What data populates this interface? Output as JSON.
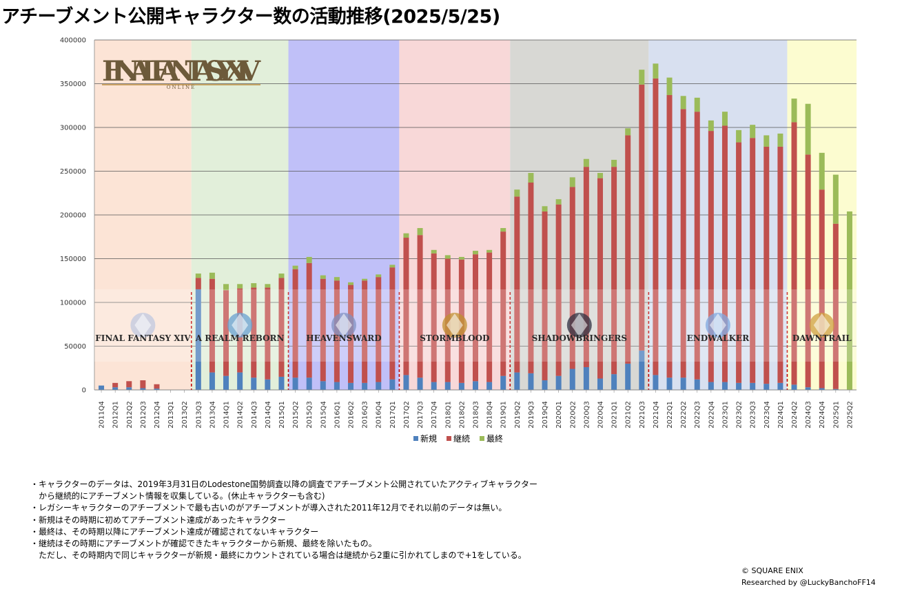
{
  "page": {
    "title": "アチーブメント公開キャラクター数の活動推移(2025/5/25)",
    "notes": [
      "・キャラクターのデータは、2019年3月31日のLodestone国勢調査以降の調査でアチーブメント公開されていたアクティブキャラクター",
      "　から継続的にアチーブメント情報を収集している。(休止キャラクターも含む)",
      "・レガシーキャラクターのアチーブメントで最も古いのがアチーブメントが導入された2011年12月でそれ以前のデータは無い。",
      "・新規はその時期に初めてアチーブメント達成があったキャラクター",
      "・最終は、その時期以降にアチーブメント達成が確認されてないキャラクター",
      "・継続はその時期にアチーブメントが確認できたキャラクターから新規、最終を除いたもの。",
      "　ただし、その時期内で同じキャラクターが新規・最終にカウントされている場合は継続から2重に引かれてしまので+1をしている。"
    ],
    "copyright": "© SQUARE ENIX",
    "researched_by": "Researched by @LuckyBanchoFF14"
  },
  "logos": {
    "main": {
      "title": "FINAL FANTASY XIV",
      "subtitle": "ONLINE"
    },
    "expansions": [
      {
        "label": "FINAL FANTASY XIV",
        "icon": "crystal-emblem-icon"
      },
      {
        "label": "A REALM REBORN",
        "icon": "dragon-emblem-icon"
      },
      {
        "label": "HEAVENSWARD",
        "icon": "dragon-knight-emblem-icon"
      },
      {
        "label": "STORMBLOOD",
        "icon": "flame-emblem-icon"
      },
      {
        "label": "SHADOWBRINGERS",
        "icon": "dark-warrior-emblem-icon"
      },
      {
        "label": "ENDWALKER",
        "icon": "moon-orb-emblem-icon"
      },
      {
        "label": "DAWNTRAIL",
        "icon": "golden-ring-emblem-icon"
      }
    ]
  },
  "chart_data": {
    "type": "bar",
    "stacked": true,
    "categories": [
      "2011Q4",
      "2012Q1",
      "2012Q2",
      "2012Q3",
      "2012Q4",
      "2013Q1",
      "2013Q2",
      "2013Q3",
      "2013Q4",
      "2014Q1",
      "2014Q2",
      "2014Q3",
      "2014Q4",
      "2015Q1",
      "2015Q2",
      "2015Q3",
      "2015Q4",
      "2016Q1",
      "2016Q2",
      "2016Q3",
      "2016Q4",
      "2017Q1",
      "2017Q2",
      "2017Q3",
      "2017Q4",
      "2018Q1",
      "2018Q2",
      "2018Q3",
      "2018Q4",
      "2019Q1",
      "2019Q2",
      "2019Q3",
      "2019Q4",
      "2020Q1",
      "2020Q2",
      "2020Q3",
      "2020Q4",
      "2021Q1",
      "2021Q2",
      "2021Q3",
      "2021Q4",
      "2022Q1",
      "2022Q2",
      "2022Q3",
      "2022Q4",
      "2023Q1",
      "2023Q2",
      "2023Q3",
      "2023Q4",
      "2024Q1",
      "2024Q2",
      "2024Q3",
      "2024Q4",
      "2025Q1",
      "2025Q2"
    ],
    "series": [
      {
        "name": "新規",
        "color": "#4f81bd",
        "values": [
          5000,
          3000,
          3000,
          2000,
          1500,
          0,
          0,
          115000,
          20000,
          16000,
          20000,
          14000,
          12000,
          15000,
          14000,
          14000,
          10000,
          9000,
          8000,
          8000,
          9000,
          12000,
          17000,
          14000,
          9000,
          9000,
          8000,
          10000,
          9000,
          16000,
          20000,
          19000,
          11000,
          16000,
          24000,
          26000,
          13000,
          18000,
          30000,
          45000,
          17000,
          14000,
          14000,
          12000,
          9000,
          9000,
          8000,
          8000,
          7000,
          8000,
          6000,
          3000,
          2000,
          1000,
          0
        ]
      },
      {
        "name": "継続",
        "color": "#c0504d",
        "values": [
          0,
          5000,
          7000,
          9000,
          5000,
          0,
          0,
          13000,
          107000,
          98000,
          96000,
          103000,
          105000,
          113000,
          124000,
          131000,
          117000,
          116000,
          112000,
          117000,
          120000,
          128000,
          157000,
          163000,
          147000,
          141000,
          141000,
          145000,
          148000,
          165000,
          201000,
          218000,
          193000,
          196000,
          208000,
          229000,
          229000,
          237000,
          261000,
          304000,
          339000,
          323000,
          307000,
          306000,
          287000,
          293000,
          275000,
          280000,
          271000,
          270000,
          300000,
          266000,
          227000,
          189000,
          0
        ]
      },
      {
        "name": "最終",
        "color": "#9bbb59",
        "values": [
          0,
          0,
          0,
          0,
          0,
          0,
          0,
          5000,
          7000,
          7000,
          5000,
          5000,
          4000,
          5000,
          4000,
          7000,
          4000,
          4000,
          3000,
          2000,
          3000,
          3000,
          5000,
          8000,
          4000,
          4000,
          3000,
          4000,
          3000,
          4000,
          8000,
          11000,
          6000,
          6000,
          11000,
          9000,
          6000,
          8000,
          8000,
          17000,
          17000,
          20000,
          15000,
          16000,
          12000,
          16000,
          14000,
          15000,
          13000,
          15000,
          27000,
          58000,
          42000,
          56000,
          204000
        ]
      }
    ],
    "ylim": [
      0,
      400000
    ],
    "y_ticks": [
      0,
      50000,
      100000,
      150000,
      200000,
      250000,
      300000,
      350000,
      400000
    ],
    "y_tick_labels": [
      "0",
      "50000",
      "100000",
      "150000",
      "200000",
      "250000",
      "300000",
      "350000",
      "400000"
    ],
    "legend_position": "bottom",
    "gridlines": true,
    "eras": [
      {
        "start": "2011Q4",
        "end": "2013Q2",
        "color": "#fce4d6"
      },
      {
        "start": "2013Q3",
        "end": "2015Q1",
        "color": "#e2efda"
      },
      {
        "start": "2015Q2",
        "end": "2017Q1",
        "color": "#c0c0f8"
      },
      {
        "start": "2017Q2",
        "end": "2019Q1",
        "color": "#f8d8d8"
      },
      {
        "start": "2019Q2",
        "end": "2021Q3",
        "color": "#d8d8d4"
      },
      {
        "start": "2021Q4",
        "end": "2024Q1",
        "color": "#d8e0f0"
      },
      {
        "start": "2024Q2",
        "end": "2025Q2",
        "color": "#fcfcd0"
      }
    ],
    "release_markers": [
      "2013Q3",
      "2015Q2",
      "2017Q2",
      "2019Q2",
      "2021Q4",
      "2024Q2"
    ]
  }
}
